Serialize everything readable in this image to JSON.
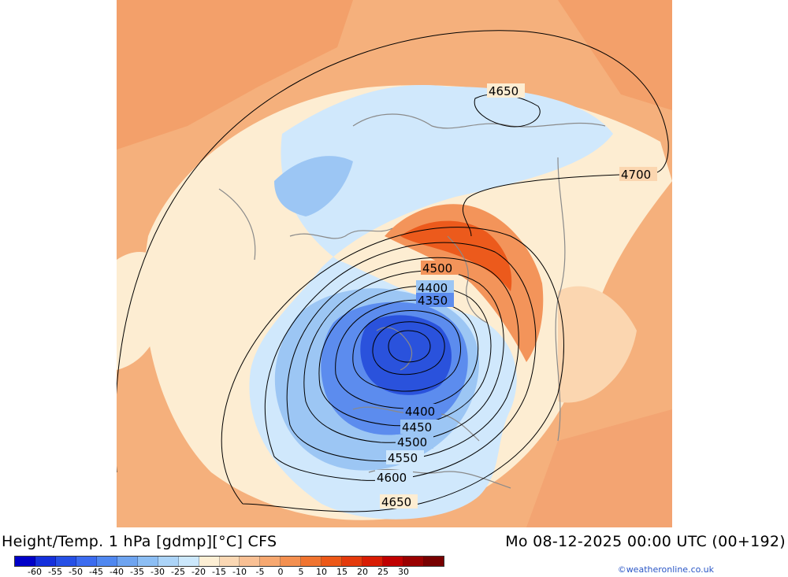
{
  "header": {
    "title": "Height/Temp. 1 hPa [gdmp][°C] CFS",
    "valid_time": "Mo 08-12-2025 00:00 UTC (00+192)"
  },
  "credit": "©weatheronline.co.uk",
  "colorbar": {
    "colors": [
      "#0000c8",
      "#1530dc",
      "#2650e6",
      "#3c6cf0",
      "#5088f0",
      "#6ea4f0",
      "#8cbef4",
      "#acd4f8",
      "#cce8fc",
      "#fdefd4",
      "#fbd8b4",
      "#f9c094",
      "#f7a870",
      "#f49050",
      "#f07430",
      "#ec5818",
      "#e43a0c",
      "#d81c04",
      "#c00000",
      "#9a0000",
      "#780000"
    ],
    "tick_labels": [
      "-60",
      "-55",
      "-50",
      "-45",
      "-40",
      "-35",
      "-30",
      "-25",
      "-20",
      "-15",
      "-10",
      "-5",
      "0",
      "5",
      "10",
      "15",
      "20",
      "25",
      "30"
    ]
  },
  "map": {
    "contour_labels": [
      "4650",
      "4700",
      "4500",
      "4400",
      "4350",
      "4400",
      "4450",
      "4500",
      "4550",
      "4600",
      "4650"
    ],
    "colors": {
      "warm_light": "#fdedd2",
      "warm_mid": "#f9c79c",
      "warm_orange": "#f5a874",
      "hot": "#ec5a1c",
      "cold_light": "#d0e8fc",
      "cold_mid": "#9cc6f4",
      "cold_deep": "#3c6ce8",
      "cold_core": "#2048dc"
    }
  }
}
